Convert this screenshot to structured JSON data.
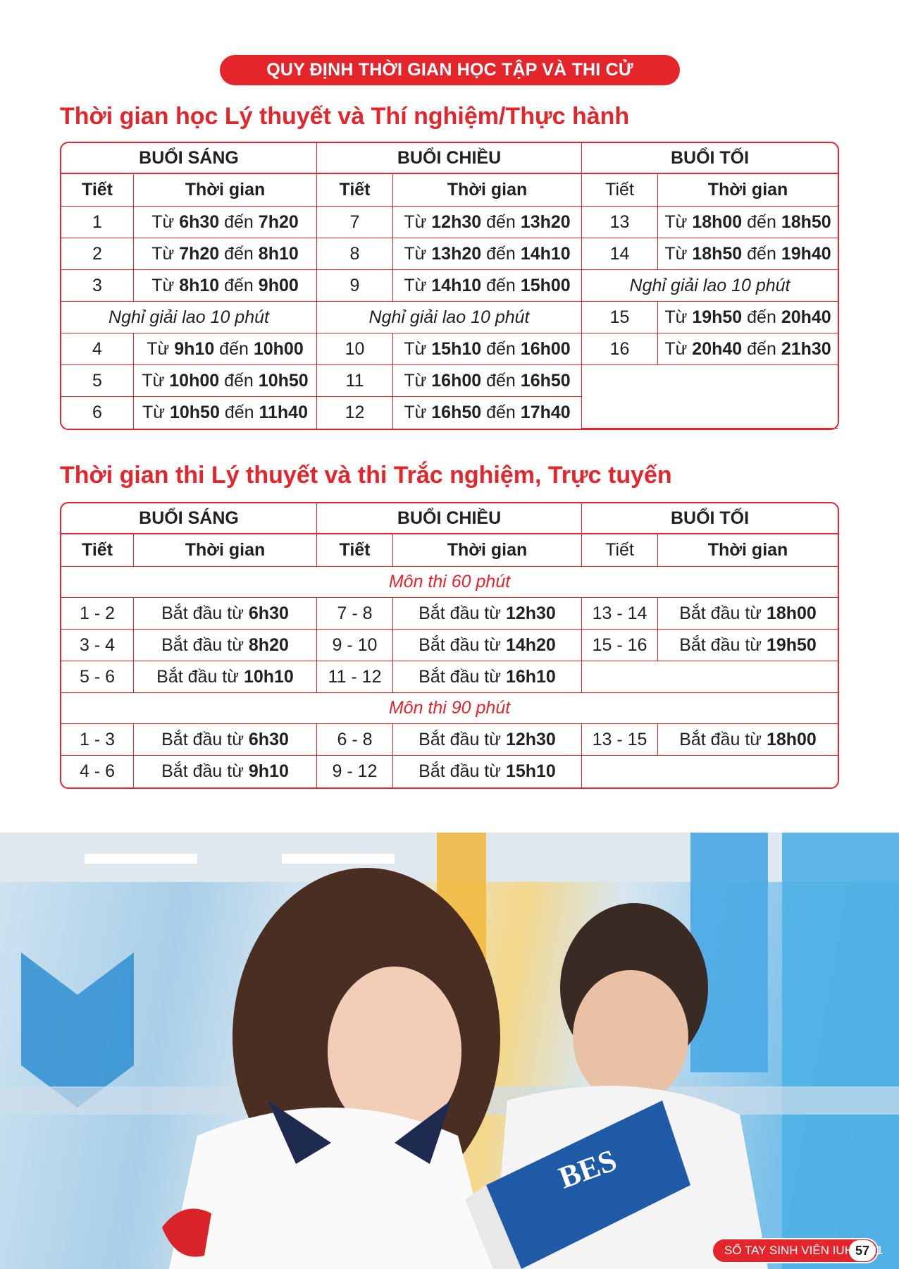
{
  "banner": "QUY ĐỊNH THỜI GIAN HỌC TẬP VÀ THI CỬ",
  "section1": {
    "title": "Thời gian học Lý thuyết và Thí nghiệm/Thực hành",
    "sessions": [
      "BUỔI SÁNG",
      "BUỔI CHIỀU",
      "BUỔI TỐI"
    ],
    "col_period": "Tiết",
    "col_time": "Thời gian",
    "break_label": "Nghỉ giải lao 10 phút",
    "word_from": "Từ",
    "word_to": "đến",
    "morning": [
      {
        "p": "1",
        "start": "6h30",
        "end": "7h20"
      },
      {
        "p": "2",
        "start": "7h20",
        "end": "8h10"
      },
      {
        "p": "3",
        "start": "8h10",
        "end": "9h00"
      },
      {
        "p": "4",
        "start": "9h10",
        "end": "10h00"
      },
      {
        "p": "5",
        "start": "10h00",
        "end": "10h50"
      },
      {
        "p": "6",
        "start": "10h50",
        "end": "11h40"
      }
    ],
    "afternoon": [
      {
        "p": "7",
        "start": "12h30",
        "end": "13h20"
      },
      {
        "p": "8",
        "start": "13h20",
        "end": "14h10"
      },
      {
        "p": "9",
        "start": "14h10",
        "end": "15h00"
      },
      {
        "p": "10",
        "start": "15h10",
        "end": "16h00"
      },
      {
        "p": "11",
        "start": "16h00",
        "end": "16h50"
      },
      {
        "p": "12",
        "start": "16h50",
        "end": "17h40"
      }
    ],
    "evening": [
      {
        "p": "13",
        "start": "18h00",
        "end": "18h50"
      },
      {
        "p": "14",
        "start": "18h50",
        "end": "19h40"
      },
      {
        "p": "15",
        "start": "19h50",
        "end": "20h40"
      },
      {
        "p": "16",
        "start": "20h40",
        "end": "21h30"
      }
    ]
  },
  "section2": {
    "title": "Thời gian thi Lý thuyết và thi Trắc nghiệm, Trực tuyến",
    "sessions": [
      "BUỔI SÁNG",
      "BUỔI CHIỀU",
      "BUỔI TỐI"
    ],
    "col_period": "Tiết",
    "col_time": "Thời gian",
    "starts_from": "Bắt đầu từ",
    "exam60_label": "Môn thi 60 phút",
    "exam60": [
      [
        {
          "p": "1 - 2",
          "t": "6h30"
        },
        {
          "p": "7 - 8",
          "t": "12h30"
        },
        {
          "p": "13 - 14",
          "t": "18h00"
        }
      ],
      [
        {
          "p": "3 - 4",
          "t": "8h20"
        },
        {
          "p": "9 - 10",
          "t": "14h20"
        },
        {
          "p": "15 - 16",
          "t": "19h50"
        }
      ],
      [
        {
          "p": "5 - 6",
          "t": "10h10"
        },
        {
          "p": "11 - 12",
          "t": "16h10"
        }
      ]
    ],
    "exam90_label": "Môn thi 90 phút",
    "exam90": [
      [
        {
          "p": "1 - 3",
          "t": "6h30"
        },
        {
          "p": "6 - 8",
          "t": "12h30"
        },
        {
          "p": "13 - 15",
          "t": "18h00"
        }
      ],
      [
        {
          "p": "4 - 6",
          "t": "9h10"
        },
        {
          "p": "9 - 12",
          "t": "15h10"
        }
      ]
    ]
  },
  "photo": {
    "book_text": "BES"
  },
  "footer": {
    "label": "SỔ TAY SINH VIÊN IUH 2021",
    "page": "57"
  },
  "colors": {
    "accent": "#e4252c",
    "text": "#231f20"
  }
}
